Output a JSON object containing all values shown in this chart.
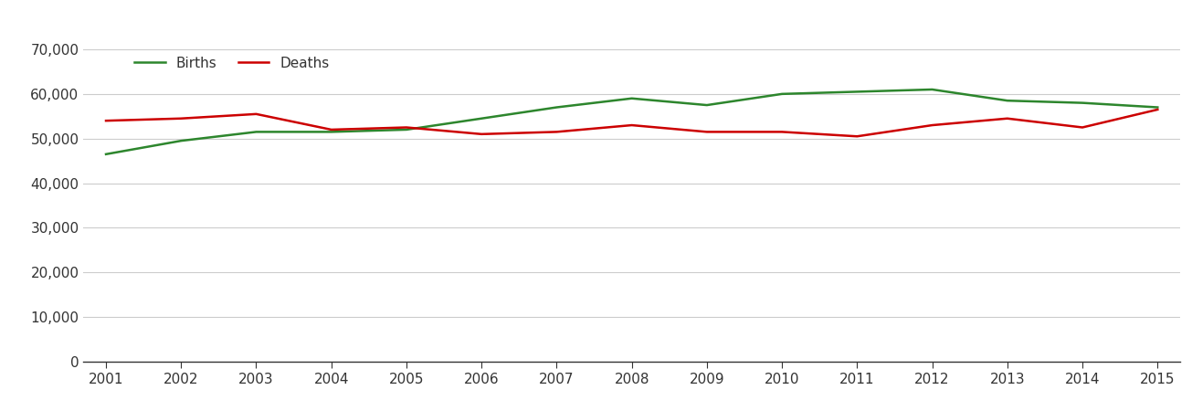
{
  "years": [
    2001,
    2002,
    2003,
    2004,
    2005,
    2006,
    2007,
    2008,
    2009,
    2010,
    2011,
    2012,
    2013,
    2014,
    2015
  ],
  "births": [
    46500,
    49500,
    51500,
    51500,
    52000,
    54500,
    57000,
    59000,
    57500,
    60000,
    60500,
    61000,
    58500,
    58000,
    57000
  ],
  "deaths": [
    54000,
    54500,
    55500,
    52000,
    52500,
    51000,
    51500,
    53000,
    51500,
    51500,
    50500,
    53000,
    54500,
    52500,
    56500
  ],
  "births_color": "#2d862d",
  "deaths_color": "#cc0000",
  "background_color": "#ffffff",
  "grid_color": "#cccccc",
  "ylim": [
    0,
    70000
  ],
  "yticks": [
    0,
    10000,
    20000,
    30000,
    40000,
    50000,
    60000,
    70000
  ],
  "legend_labels": [
    "Births",
    "Deaths"
  ],
  "line_width": 1.8,
  "tick_fontsize": 11,
  "legend_fontsize": 11
}
